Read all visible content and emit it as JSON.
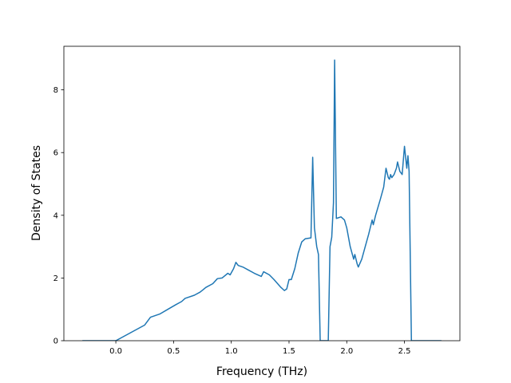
{
  "chart_data": {
    "type": "line",
    "xlabel": "Frequency (THz)",
    "ylabel": "Density of States",
    "x": [
      -0.29,
      0.0,
      0.25,
      0.3,
      0.38,
      0.45,
      0.52,
      0.57,
      0.6,
      0.68,
      0.73,
      0.78,
      0.84,
      0.88,
      0.92,
      0.97,
      0.99,
      1.02,
      1.04,
      1.06,
      1.1,
      1.15,
      1.2,
      1.26,
      1.28,
      1.33,
      1.37,
      1.43,
      1.46,
      1.48,
      1.5,
      1.52,
      1.55,
      1.58,
      1.61,
      1.64,
      1.69,
      1.705,
      1.72,
      1.74,
      1.755,
      1.77,
      1.84,
      1.855,
      1.87,
      1.885,
      1.895,
      1.91,
      1.95,
      1.98,
      2.0,
      2.03,
      2.06,
      2.07,
      2.09,
      2.1,
      2.13,
      2.16,
      2.19,
      2.2,
      2.22,
      2.23,
      2.25,
      2.29,
      2.32,
      2.34,
      2.36,
      2.37,
      2.38,
      2.39,
      2.41,
      2.43,
      2.44,
      2.46,
      2.48,
      2.5,
      2.52,
      2.53,
      2.54,
      2.56,
      2.82
    ],
    "series": [
      {
        "color": "#1f77b4",
        "values": [
          0,
          0,
          0.5,
          0.75,
          0.85,
          1.0,
          1.15,
          1.25,
          1.35,
          1.45,
          1.55,
          1.7,
          1.82,
          1.98,
          2.0,
          2.15,
          2.1,
          2.3,
          2.5,
          2.4,
          2.35,
          2.25,
          2.15,
          2.05,
          2.2,
          2.1,
          1.95,
          1.7,
          1.6,
          1.65,
          1.95,
          1.95,
          2.3,
          2.8,
          3.15,
          3.25,
          3.28,
          5.85,
          3.6,
          3.0,
          2.75,
          0,
          0,
          3.0,
          3.3,
          4.4,
          8.95,
          3.9,
          3.95,
          3.85,
          3.6,
          3.0,
          2.6,
          2.75,
          2.45,
          2.35,
          2.6,
          3.0,
          3.4,
          3.55,
          3.85,
          3.7,
          4.0,
          4.5,
          4.9,
          5.5,
          5.2,
          5.15,
          5.3,
          5.2,
          5.3,
          5.5,
          5.7,
          5.4,
          5.3,
          6.2,
          5.5,
          5.9,
          5.4,
          0,
          0
        ]
      }
    ],
    "xlim": [
      -0.45,
      2.98
    ],
    "ylim": [
      0,
      9.39
    ],
    "xticks": [
      {
        "value": 0,
        "label": "0.0"
      },
      0.5,
      {
        "value": 1,
        "label": "1.0"
      },
      1.5,
      {
        "value": 2,
        "label": "2.0"
      },
      2.5
    ],
    "yticks": [
      0,
      2,
      4,
      6,
      8
    ]
  }
}
